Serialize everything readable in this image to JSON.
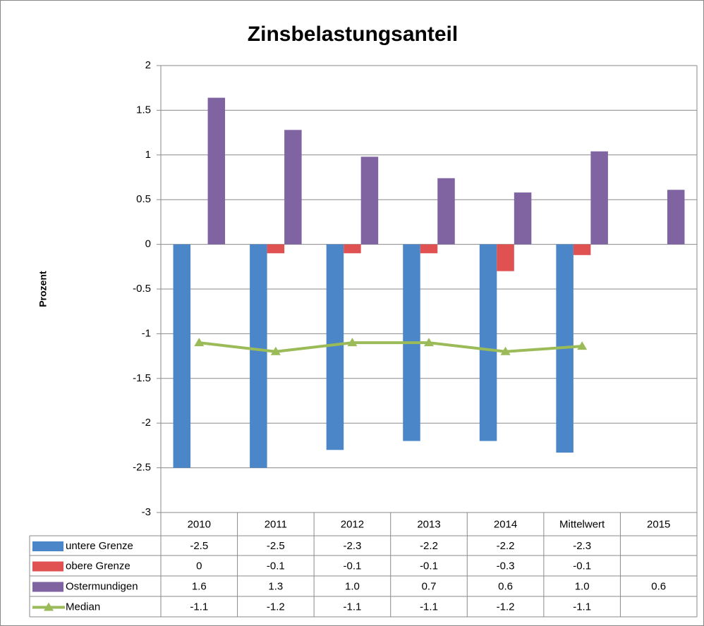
{
  "chart_data": {
    "type": "bar",
    "title": "Zinsbelastungsanteil",
    "y_label": "Prozent",
    "categories": [
      "2010",
      "2011",
      "2012",
      "2013",
      "2014",
      "Mittelwert",
      "2015"
    ],
    "series": [
      {
        "name": "untere Grenze",
        "type": "bar",
        "color": "#4a86c8",
        "values": [
          -2.5,
          -2.5,
          -2.3,
          -2.2,
          -2.2,
          -2.33,
          null
        ],
        "value_labels": [
          "-2.5",
          "-2.5",
          "-2.3",
          "-2.2",
          "-2.2",
          "-2.3",
          null
        ]
      },
      {
        "name": "obere Grenze",
        "type": "bar",
        "color": "#e05252",
        "values": [
          0,
          -0.1,
          -0.1,
          -0.1,
          -0.3,
          -0.12,
          null
        ],
        "value_labels": [
          "0",
          "-0.1",
          "-0.1",
          "-0.1",
          "-0.3",
          "-0.1",
          null
        ]
      },
      {
        "name": "Ostermundigen",
        "type": "bar",
        "color": "#8064a2",
        "values": [
          1.64,
          1.28,
          0.98,
          0.74,
          0.58,
          1.04,
          0.61
        ],
        "value_labels": [
          "1.6",
          "1.3",
          "1.0",
          "0.7",
          "0.6",
          "1.0",
          "0.6"
        ]
      },
      {
        "name": "Median",
        "type": "line",
        "color": "#9bbb59",
        "values": [
          -1.1,
          -1.2,
          -1.1,
          -1.1,
          -1.2,
          -1.14,
          null
        ],
        "value_labels": [
          "-1.1",
          "-1.2",
          "-1.1",
          "-1.1",
          "-1.2",
          "-1.1",
          null
        ]
      }
    ],
    "ylim": [
      -3,
      2
    ],
    "yticks": [
      2,
      1.5,
      1,
      0.5,
      0,
      -0.5,
      -1,
      -1.5,
      -2,
      -2.5,
      -3
    ],
    "grid": true,
    "data_table": true
  }
}
